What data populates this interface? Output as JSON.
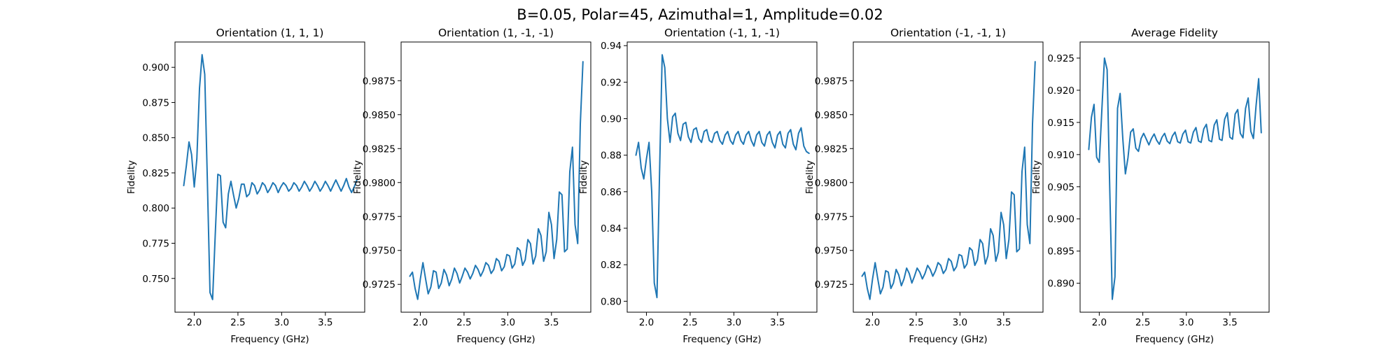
{
  "figure": {
    "title": "B=0.05, Polar=45, Azimuthal=1, Amplitude=0.02"
  },
  "chart_data": [
    {
      "type": "line",
      "title": "Orientation (1, 1, 1)",
      "xlabel": "Frequency (GHz)",
      "ylabel": "Fidelity",
      "xlim": [
        1.78,
        3.95
      ],
      "ylim": [
        0.726,
        0.918
      ],
      "xticks": [
        "2.0",
        "2.5",
        "3.0",
        "3.5"
      ],
      "yticks": [
        "0.750",
        "0.775",
        "0.800",
        "0.825",
        "0.850",
        "0.875",
        "0.900"
      ],
      "grid": false,
      "series": [
        {
          "color": "#1f77b4",
          "x": [
            1.88,
            1.91,
            1.94,
            1.97,
            2.0,
            2.03,
            2.06,
            2.09,
            2.12,
            2.15,
            2.18,
            2.21,
            2.24,
            2.27,
            2.3,
            2.33,
            2.36,
            2.39,
            2.42,
            2.45,
            2.48,
            2.51,
            2.54,
            2.57,
            2.6,
            2.63,
            2.66,
            2.69,
            2.72,
            2.75,
            2.78,
            2.81,
            2.84,
            2.87,
            2.9,
            2.93,
            2.96,
            2.99,
            3.02,
            3.05,
            3.08,
            3.11,
            3.14,
            3.17,
            3.2,
            3.23,
            3.26,
            3.29,
            3.32,
            3.35,
            3.38,
            3.41,
            3.44,
            3.47,
            3.5,
            3.53,
            3.56,
            3.59,
            3.62,
            3.65,
            3.68,
            3.71,
            3.74,
            3.77,
            3.8,
            3.83,
            3.86
          ],
          "y": [
            0.816,
            0.83,
            0.847,
            0.838,
            0.815,
            0.835,
            0.885,
            0.909,
            0.895,
            0.82,
            0.74,
            0.735,
            0.78,
            0.824,
            0.823,
            0.79,
            0.786,
            0.81,
            0.819,
            0.809,
            0.8,
            0.807,
            0.817,
            0.817,
            0.808,
            0.81,
            0.818,
            0.816,
            0.81,
            0.813,
            0.818,
            0.816,
            0.811,
            0.814,
            0.818,
            0.816,
            0.811,
            0.815,
            0.818,
            0.816,
            0.812,
            0.814,
            0.818,
            0.816,
            0.812,
            0.815,
            0.819,
            0.816,
            0.812,
            0.815,
            0.819,
            0.816,
            0.812,
            0.815,
            0.819,
            0.816,
            0.812,
            0.816,
            0.82,
            0.816,
            0.812,
            0.816,
            0.821,
            0.815,
            0.811,
            0.815,
            0.82
          ]
        }
      ]
    },
    {
      "type": "line",
      "title": "Orientation (1, -1, -1)",
      "xlabel": "Frequency (GHz)",
      "ylabel": "Fidelity",
      "xlim": [
        1.78,
        3.95
      ],
      "ylim": [
        0.97045,
        0.99035
      ],
      "xticks": [
        "2.0",
        "2.5",
        "3.0",
        "3.5"
      ],
      "yticks": [
        "0.9725",
        "0.9750",
        "0.9775",
        "0.9800",
        "0.9825",
        "0.9850",
        "0.9875"
      ],
      "grid": false,
      "series": [
        {
          "color": "#1f77b4",
          "x": [
            1.88,
            1.91,
            1.94,
            1.97,
            2.0,
            2.03,
            2.06,
            2.09,
            2.12,
            2.15,
            2.18,
            2.21,
            2.24,
            2.27,
            2.3,
            2.33,
            2.36,
            2.39,
            2.42,
            2.45,
            2.48,
            2.51,
            2.54,
            2.57,
            2.6,
            2.63,
            2.66,
            2.69,
            2.72,
            2.75,
            2.78,
            2.81,
            2.84,
            2.87,
            2.9,
            2.93,
            2.96,
            2.99,
            3.02,
            3.05,
            3.08,
            3.11,
            3.14,
            3.17,
            3.2,
            3.23,
            3.26,
            3.29,
            3.32,
            3.35,
            3.38,
            3.41,
            3.44,
            3.47,
            3.5,
            3.53,
            3.56,
            3.59,
            3.62,
            3.65,
            3.68,
            3.71,
            3.74,
            3.77,
            3.8,
            3.83,
            3.86
          ],
          "y": [
            0.9731,
            0.9734,
            0.9722,
            0.9714,
            0.9729,
            0.9741,
            0.9729,
            0.9718,
            0.9723,
            0.9735,
            0.9734,
            0.9722,
            0.9726,
            0.9736,
            0.9732,
            0.9724,
            0.9729,
            0.9737,
            0.9733,
            0.9726,
            0.9731,
            0.9737,
            0.9734,
            0.9729,
            0.9733,
            0.9739,
            0.9736,
            0.9731,
            0.9735,
            0.9741,
            0.9739,
            0.9733,
            0.9736,
            0.9744,
            0.9742,
            0.9735,
            0.9738,
            0.9747,
            0.9746,
            0.9737,
            0.974,
            0.9752,
            0.975,
            0.9739,
            0.9743,
            0.9758,
            0.9755,
            0.974,
            0.9746,
            0.9766,
            0.9761,
            0.9742,
            0.9749,
            0.9778,
            0.9769,
            0.9744,
            0.9758,
            0.9793,
            0.9791,
            0.9749,
            0.9751,
            0.9808,
            0.9826,
            0.9769,
            0.9755,
            0.9843,
            0.9889
          ]
        }
      ]
    },
    {
      "type": "line",
      "title": "Orientation (-1, 1, -1)",
      "xlabel": "Frequency (GHz)",
      "ylabel": "Fidelity",
      "xlim": [
        1.78,
        3.95
      ],
      "ylim": [
        0.794,
        0.942
      ],
      "xticks": [
        "2.0",
        "2.5",
        "3.0",
        "3.5"
      ],
      "yticks": [
        "0.80",
        "0.82",
        "0.84",
        "0.86",
        "0.88",
        "0.90",
        "0.92",
        "0.94"
      ],
      "grid": false,
      "series": [
        {
          "color": "#1f77b4",
          "x": [
            1.88,
            1.91,
            1.94,
            1.97,
            2.0,
            2.03,
            2.06,
            2.09,
            2.12,
            2.15,
            2.18,
            2.21,
            2.24,
            2.27,
            2.3,
            2.33,
            2.36,
            2.39,
            2.42,
            2.45,
            2.48,
            2.51,
            2.54,
            2.57,
            2.6,
            2.63,
            2.66,
            2.69,
            2.72,
            2.75,
            2.78,
            2.81,
            2.84,
            2.87,
            2.9,
            2.93,
            2.96,
            2.99,
            3.02,
            3.05,
            3.08,
            3.11,
            3.14,
            3.17,
            3.2,
            3.23,
            3.26,
            3.29,
            3.32,
            3.35,
            3.38,
            3.41,
            3.44,
            3.47,
            3.5,
            3.53,
            3.56,
            3.59,
            3.62,
            3.65,
            3.68,
            3.71,
            3.74,
            3.77,
            3.8,
            3.83,
            3.86
          ],
          "y": [
            0.88,
            0.887,
            0.873,
            0.867,
            0.878,
            0.887,
            0.86,
            0.81,
            0.802,
            0.87,
            0.935,
            0.928,
            0.9,
            0.887,
            0.901,
            0.903,
            0.892,
            0.888,
            0.897,
            0.898,
            0.89,
            0.887,
            0.894,
            0.895,
            0.889,
            0.887,
            0.893,
            0.894,
            0.888,
            0.887,
            0.892,
            0.893,
            0.888,
            0.886,
            0.891,
            0.893,
            0.888,
            0.886,
            0.891,
            0.893,
            0.888,
            0.886,
            0.891,
            0.893,
            0.888,
            0.885,
            0.891,
            0.893,
            0.887,
            0.885,
            0.891,
            0.893,
            0.887,
            0.884,
            0.891,
            0.893,
            0.886,
            0.884,
            0.892,
            0.894,
            0.886,
            0.883,
            0.892,
            0.895,
            0.885,
            0.882,
            0.881
          ]
        }
      ]
    },
    {
      "type": "line",
      "title": "Orientation (-1, -1, 1)",
      "xlabel": "Frequency (GHz)",
      "ylabel": "Fidelity",
      "xlim": [
        1.78,
        3.95
      ],
      "ylim": [
        0.97045,
        0.99035
      ],
      "xticks": [
        "2.0",
        "2.5",
        "3.0",
        "3.5"
      ],
      "yticks": [
        "0.9725",
        "0.9750",
        "0.9775",
        "0.9800",
        "0.9825",
        "0.9850",
        "0.9875"
      ],
      "grid": false,
      "series": [
        {
          "color": "#1f77b4",
          "x": [
            1.88,
            1.91,
            1.94,
            1.97,
            2.0,
            2.03,
            2.06,
            2.09,
            2.12,
            2.15,
            2.18,
            2.21,
            2.24,
            2.27,
            2.3,
            2.33,
            2.36,
            2.39,
            2.42,
            2.45,
            2.48,
            2.51,
            2.54,
            2.57,
            2.6,
            2.63,
            2.66,
            2.69,
            2.72,
            2.75,
            2.78,
            2.81,
            2.84,
            2.87,
            2.9,
            2.93,
            2.96,
            2.99,
            3.02,
            3.05,
            3.08,
            3.11,
            3.14,
            3.17,
            3.2,
            3.23,
            3.26,
            3.29,
            3.32,
            3.35,
            3.38,
            3.41,
            3.44,
            3.47,
            3.5,
            3.53,
            3.56,
            3.59,
            3.62,
            3.65,
            3.68,
            3.71,
            3.74,
            3.77,
            3.8,
            3.83,
            3.86
          ],
          "y": [
            0.9731,
            0.9734,
            0.9722,
            0.9714,
            0.9729,
            0.9741,
            0.9729,
            0.9718,
            0.9723,
            0.9735,
            0.9734,
            0.9722,
            0.9726,
            0.9736,
            0.9732,
            0.9724,
            0.9729,
            0.9737,
            0.9733,
            0.9726,
            0.9731,
            0.9737,
            0.9734,
            0.9729,
            0.9733,
            0.9739,
            0.9736,
            0.9731,
            0.9735,
            0.9741,
            0.9739,
            0.9733,
            0.9736,
            0.9744,
            0.9742,
            0.9735,
            0.9738,
            0.9747,
            0.9746,
            0.9737,
            0.974,
            0.9752,
            0.975,
            0.9739,
            0.9743,
            0.9758,
            0.9755,
            0.974,
            0.9746,
            0.9766,
            0.9761,
            0.9742,
            0.9749,
            0.9778,
            0.9769,
            0.9744,
            0.9758,
            0.9793,
            0.9791,
            0.9749,
            0.9751,
            0.9808,
            0.9826,
            0.9769,
            0.9755,
            0.9843,
            0.9889
          ]
        }
      ]
    },
    {
      "type": "line",
      "title": "Average Fidelity",
      "xlabel": "Frequency (GHz)",
      "ylabel": "Fidelity",
      "xlim": [
        1.78,
        3.95
      ],
      "ylim": [
        0.8855,
        0.9275
      ],
      "xticks": [
        "2.0",
        "2.5",
        "3.0",
        "3.5"
      ],
      "yticks": [
        "0.890",
        "0.895",
        "0.900",
        "0.905",
        "0.910",
        "0.915",
        "0.920",
        "0.925"
      ],
      "grid": false,
      "series": [
        {
          "color": "#1f77b4",
          "x": [
            1.88,
            1.91,
            1.94,
            1.97,
            2.0,
            2.03,
            2.06,
            2.09,
            2.12,
            2.15,
            2.18,
            2.21,
            2.24,
            2.27,
            2.3,
            2.33,
            2.36,
            2.39,
            2.42,
            2.45,
            2.48,
            2.51,
            2.54,
            2.57,
            2.6,
            2.63,
            2.66,
            2.69,
            2.72,
            2.75,
            2.78,
            2.81,
            2.84,
            2.87,
            2.9,
            2.93,
            2.96,
            2.99,
            3.02,
            3.05,
            3.08,
            3.11,
            3.14,
            3.17,
            3.2,
            3.23,
            3.26,
            3.29,
            3.32,
            3.35,
            3.38,
            3.41,
            3.44,
            3.47,
            3.5,
            3.53,
            3.56,
            3.59,
            3.62,
            3.65,
            3.68,
            3.71,
            3.74,
            3.77,
            3.8,
            3.83,
            3.86
          ],
          "y": [
            0.9108,
            0.9158,
            0.9178,
            0.9096,
            0.9088,
            0.917,
            0.925,
            0.9232,
            0.905,
            0.8875,
            0.891,
            0.9172,
            0.9195,
            0.9125,
            0.907,
            0.9095,
            0.9135,
            0.914,
            0.911,
            0.9105,
            0.9125,
            0.9133,
            0.9124,
            0.9115,
            0.9125,
            0.9132,
            0.9122,
            0.9116,
            0.9127,
            0.9133,
            0.9121,
            0.9117,
            0.9129,
            0.9135,
            0.912,
            0.9118,
            0.9132,
            0.9138,
            0.912,
            0.9118,
            0.9135,
            0.9142,
            0.9121,
            0.9119,
            0.914,
            0.9147,
            0.9122,
            0.912,
            0.9146,
            0.9154,
            0.9124,
            0.9122,
            0.9155,
            0.9165,
            0.9127,
            0.9124,
            0.9163,
            0.917,
            0.9133,
            0.9126,
            0.9172,
            0.9188,
            0.9136,
            0.9125,
            0.9175,
            0.9218,
            0.9134
          ]
        }
      ]
    }
  ]
}
